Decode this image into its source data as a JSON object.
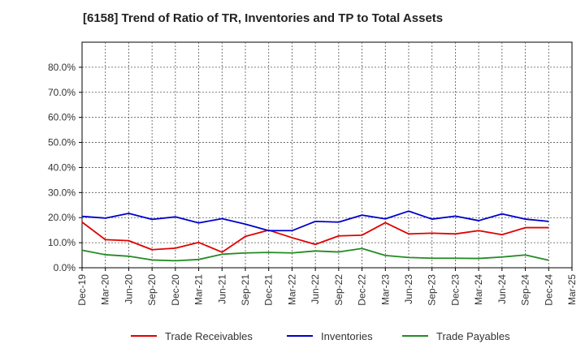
{
  "chart_data": {
    "type": "line",
    "title": "[6158]  Trend of Ratio of TR, Inventories and TP to Total Assets",
    "x": [
      "Dec-19",
      "Mar-20",
      "Jun-20",
      "Sep-20",
      "Dec-20",
      "Mar-21",
      "Jun-21",
      "Sep-21",
      "Dec-21",
      "Mar-22",
      "Jun-22",
      "Sep-22",
      "Dec-22",
      "Mar-23",
      "Jun-23",
      "Sep-23",
      "Dec-23",
      "Mar-24",
      "Jun-24",
      "Sep-24",
      "Dec-24",
      "Mar-25"
    ],
    "ylim": [
      0,
      90
    ],
    "yticks": [
      0,
      10,
      20,
      30,
      40,
      50,
      60,
      70,
      80
    ],
    "ytick_labels": [
      "0.0%",
      "10.0%",
      "20.0%",
      "30.0%",
      "40.0%",
      "50.0%",
      "60.0%",
      "70.0%",
      "80.0%"
    ],
    "grid": true,
    "legend_position": "bottom",
    "series": [
      {
        "name": "Trade Receivables",
        "color": "#e00000",
        "values": [
          18.2,
          11.2,
          10.8,
          7.2,
          7.8,
          10.1,
          6.2,
          12.5,
          15.0,
          12.0,
          9.3,
          12.7,
          13.0,
          18.0,
          13.5,
          13.8,
          13.5,
          14.8,
          13.2,
          16.0,
          16.0,
          null
        ]
      },
      {
        "name": "Inventories",
        "color": "#0000cc",
        "values": [
          20.5,
          19.8,
          21.7,
          19.3,
          20.3,
          17.9,
          19.6,
          17.4,
          14.8,
          14.8,
          18.5,
          18.2,
          21.0,
          19.5,
          22.6,
          19.4,
          20.6,
          18.8,
          21.5,
          19.4,
          18.5,
          null
        ]
      },
      {
        "name": "Trade Payables",
        "color": "#228b22",
        "values": [
          7.0,
          5.2,
          4.6,
          3.1,
          2.8,
          3.3,
          5.4,
          5.9,
          6.1,
          5.9,
          6.7,
          6.3,
          7.7,
          4.9,
          4.1,
          3.8,
          3.8,
          3.7,
          4.3,
          5.1,
          3.0,
          null
        ]
      }
    ]
  }
}
